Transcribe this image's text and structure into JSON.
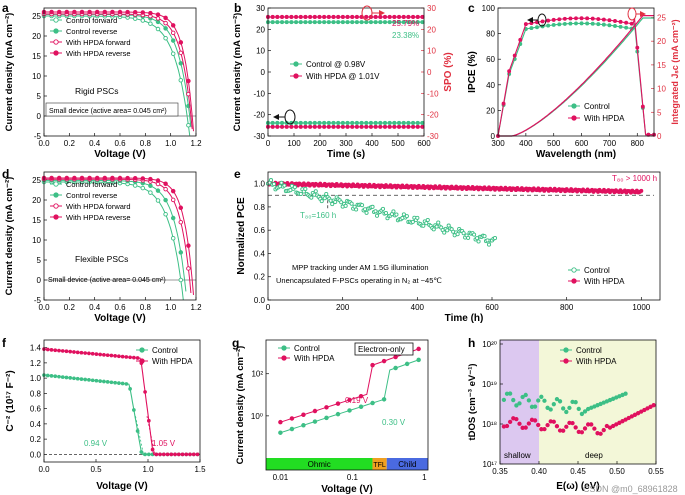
{
  "colors": {
    "control": "#3dbf86",
    "hpda": "#e0115f",
    "spo_axis": "#e03040",
    "text": "#111111",
    "ohmic": "#22dd22",
    "tfl": "#f0a020",
    "child": "#4a6ae0",
    "shallow": "#dcc8f0",
    "deep": "#f3f7d8"
  },
  "watermark": "CSDN @m0_68961828",
  "chart_data": [
    {
      "panel": "a",
      "type": "line",
      "xlabel": "Voltage (V)",
      "ylabel": "Current density (mA cm⁻²)",
      "xlim": [
        0,
        1.2
      ],
      "ylim": [
        -5,
        27
      ],
      "xticks": [
        "0.0",
        "0.2",
        "0.4",
        "0.6",
        "0.8",
        "1.0",
        "1.2"
      ],
      "yticks": [
        "-5",
        "0",
        "5",
        "10",
        "15",
        "20",
        "25"
      ],
      "legend": [
        "Control forward",
        "Control reverse",
        "With HPDA forward",
        "With HPDA reverse"
      ],
      "annotation": "Rigid PSCs",
      "note": "Small device (active area= 0.045 cm²)",
      "series": [
        {
          "name": "Control forward",
          "jsc": 25.0,
          "voc": 1.13,
          "sharp": 10
        },
        {
          "name": "Control reverse",
          "jsc": 25.4,
          "voc": 1.15,
          "sharp": 12
        },
        {
          "name": "With HPDA forward",
          "jsc": 25.5,
          "voc": 1.16,
          "sharp": 14
        },
        {
          "name": "With HPDA reverse",
          "jsc": 26.0,
          "voc": 1.17,
          "sharp": 16
        }
      ]
    },
    {
      "panel": "b",
      "type": "line",
      "xlabel": "Time (s)",
      "ylabel": "Current density (mA cm⁻²)",
      "y2label": "SPO (%)",
      "xlim": [
        0,
        600
      ],
      "ylim": [
        -30,
        30
      ],
      "xticks": [
        "0",
        "100",
        "200",
        "300",
        "400",
        "500",
        "600"
      ],
      "yticks": [
        "-30",
        "-20",
        "-10",
        "0",
        "10",
        "20",
        "30"
      ],
      "legend": [
        "Control @ 0.98V",
        "With HPDA @ 1.01V"
      ],
      "labels": [
        "25.79%",
        "23.38%"
      ],
      "series": [
        {
          "name": "With HPDA @ 1.01V",
          "j": -25.7,
          "spo": 25.79
        },
        {
          "name": "Control @ 0.98V",
          "j": -23.9,
          "spo": 23.38
        }
      ]
    },
    {
      "panel": "c",
      "type": "line",
      "xlabel": "Wavelength (nm)",
      "ylabel": "IPCE (%)",
      "y2label": "Integrated Jₛᴄ (mA cm⁻²)",
      "xlim": [
        300,
        860
      ],
      "ylim": [
        0,
        100
      ],
      "y2lim": [
        0,
        27
      ],
      "xticks": [
        "300",
        "400",
        "500",
        "600",
        "700",
        "800"
      ],
      "yticks": [
        "0",
        "20",
        "40",
        "60",
        "80",
        "100"
      ],
      "y2ticks": [
        "0",
        "5",
        "10",
        "15",
        "20",
        "25"
      ],
      "legend": [
        "Control",
        "With HPDA"
      ],
      "series": [
        {
          "name": "Control",
          "ipce_max": 88,
          "jsc": 24.9
        },
        {
          "name": "With HPDA",
          "ipce_max": 92,
          "jsc": 25.4
        }
      ]
    },
    {
      "panel": "d",
      "type": "line",
      "xlabel": "Voltage (V)",
      "ylabel": "Current density (mA cm⁻²)",
      "xlim": [
        0,
        1.2
      ],
      "ylim": [
        -5,
        27
      ],
      "xticks": [
        "0.0",
        "0.2",
        "0.4",
        "0.6",
        "0.8",
        "1.0",
        "1.2"
      ],
      "yticks": [
        "-5",
        "0",
        "5",
        "10",
        "15",
        "20",
        "25"
      ],
      "legend": [
        "Control forward",
        "Control reverse",
        "With HPDA forward",
        "With HPDA reverse"
      ],
      "annotation": "Flexible PSCs",
      "note": "Small device (active area= 0.045 cm²)",
      "series": [
        {
          "name": "Control forward",
          "jsc": 24.5,
          "voc": 1.08,
          "sharp": 10
        },
        {
          "name": "Control reverse",
          "jsc": 24.9,
          "voc": 1.11,
          "sharp": 12
        },
        {
          "name": "With HPDA forward",
          "jsc": 25.2,
          "voc": 1.15,
          "sharp": 14
        },
        {
          "name": "With HPDA reverse",
          "jsc": 25.5,
          "voc": 1.17,
          "sharp": 16
        }
      ]
    },
    {
      "panel": "e",
      "type": "scatter",
      "xlabel": "Time (h)",
      "ylabel": "Normalized PCE",
      "xlim": [
        0,
        1050
      ],
      "ylim": [
        0,
        1.1
      ],
      "xticks": [
        "0",
        "200",
        "400",
        "600",
        "800",
        "1000"
      ],
      "yticks": [
        "0.0",
        "0.2",
        "0.4",
        "0.6",
        "0.8",
        "1.0"
      ],
      "legend": [
        "Control",
        "With HPDA"
      ],
      "labels": [
        "T₈₀=160 h",
        "T₈₀ > 1000 h"
      ],
      "notes": [
        "MPP tracking under AM 1.5G illumination",
        "Unencapsulated F-PSCs operating in N₂ at ~45℃"
      ],
      "series": [
        {
          "name": "With HPDA",
          "end_time": 1000,
          "end_value": 0.93
        },
        {
          "name": "Control",
          "end_time": 610,
          "end_value": 0.5
        }
      ],
      "threshold": 0.9
    },
    {
      "panel": "f",
      "type": "line",
      "xlabel": "Voltage (V)",
      "ylabel": "C⁻² (10¹⁷ F⁻²)",
      "xlim": [
        0,
        1.5
      ],
      "ylim": [
        -0.1,
        1.5
      ],
      "xticks": [
        "0.0",
        "0.5",
        "1.0",
        "1.5"
      ],
      "yticks": [
        "0.0",
        "0.2",
        "0.4",
        "0.6",
        "0.8",
        "1.0",
        "1.2",
        "1.4"
      ],
      "legend": [
        "Control",
        "With HPDA"
      ],
      "labels": [
        "0.94 V",
        "1.05 V"
      ],
      "series": [
        {
          "name": "Control",
          "plateau": 1.04,
          "vbi": 0.94
        },
        {
          "name": "With HPDA",
          "plateau": 1.38,
          "vbi": 1.05
        }
      ]
    },
    {
      "panel": "g",
      "type": "scatter",
      "xlabel": "Voltage (V)",
      "ylabel": "Current density (mA cm⁻²)",
      "xscale": "log",
      "yscale": "log",
      "xticks": [
        "0.01",
        "0.1",
        "1"
      ],
      "yticks": [
        "10⁰",
        "10²"
      ],
      "legend": [
        "Control",
        "With HPDA"
      ],
      "labels": [
        "Electron-only",
        "0.19 V",
        "0.30 V"
      ],
      "regions": [
        "Ohmic",
        "TFL",
        "Child"
      ],
      "series": [
        {
          "name": "Control",
          "vtfl": 0.3
        },
        {
          "name": "With HPDA",
          "vtfl": 0.19
        }
      ]
    },
    {
      "panel": "h",
      "type": "scatter",
      "xlabel": "E(ω) (eV)",
      "ylabel": "tDOS (cm⁻³ eV⁻¹)",
      "yscale": "log",
      "xlim": [
        0.35,
        0.55
      ],
      "xticks": [
        "0.35",
        "0.40",
        "0.45",
        "0.50",
        "0.55"
      ],
      "yticks": [
        "10¹⁷",
        "10¹⁸",
        "10¹⁹",
        "10²⁰"
      ],
      "legend": [
        "Control",
        "With HPDA"
      ],
      "regions": [
        "shallow",
        "deep"
      ],
      "series": [
        {
          "name": "Control"
        },
        {
          "name": "With HPDA"
        }
      ]
    }
  ]
}
